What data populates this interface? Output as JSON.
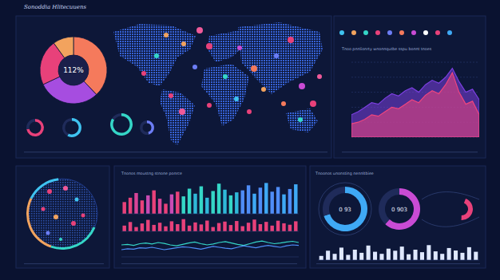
{
  "dashboard": {
    "title": "Sonoddia Hlitecuuens",
    "captions": [
      "Tnoo pnnlionrty wnonnqutbe sspu bonnt tnoes",
      "Tnonos moustng stnone ponrce",
      "Tnoonos unonsting nennltbiee"
    ]
  },
  "chart_data": [
    {
      "type": "pie",
      "center_label": "112%",
      "values": [
        38,
        30,
        22,
        10
      ],
      "colors": [
        "#f57a5c",
        "#a64de0",
        "#e8417a",
        "#f2a35e"
      ]
    },
    {
      "type": "donut",
      "series": [
        {
          "color": "#e8417a",
          "values": [
            72,
            28
          ]
        },
        {
          "color": "#3fc3f0",
          "values": [
            58,
            42
          ]
        },
        {
          "color": "#35d6c7",
          "values": [
            84,
            16
          ]
        },
        {
          "color": "#6c7df5",
          "values": [
            46,
            54
          ]
        }
      ]
    },
    {
      "type": "area",
      "x": [
        0,
        1,
        2,
        3,
        4,
        5,
        6,
        7,
        8,
        9,
        10,
        11,
        12,
        13,
        14,
        15,
        16,
        17,
        18,
        19
      ],
      "xlim": [
        0,
        19
      ],
      "ylim": [
        0,
        100
      ],
      "yticks": [
        0,
        20,
        40,
        60,
        80,
        100
      ],
      "grid": true,
      "tick_labels": false,
      "series": [
        {
          "color": "#7b3fe0",
          "values": [
            30,
            34,
            40,
            46,
            44,
            52,
            58,
            55,
            62,
            66,
            60,
            70,
            76,
            72,
            80,
            92,
            74,
            60,
            64,
            50
          ]
        },
        {
          "color": "#f0457e",
          "values": [
            18,
            20,
            24,
            30,
            28,
            34,
            40,
            38,
            44,
            50,
            46,
            56,
            62,
            58,
            70,
            86,
            60,
            44,
            48,
            30
          ]
        }
      ]
    },
    {
      "type": "bar",
      "tick_labels": false,
      "ylim": [
        0,
        100
      ],
      "categories": [
        null,
        null,
        null,
        null,
        null,
        null,
        null,
        null,
        null,
        null,
        null,
        null,
        null,
        null,
        null,
        null,
        null,
        null,
        null,
        null,
        null,
        null,
        null,
        null,
        null,
        null,
        null,
        null,
        null,
        null
      ],
      "values": [
        35,
        48,
        62,
        40,
        55,
        70,
        45,
        30,
        58,
        66,
        52,
        75,
        60,
        82,
        48,
        68,
        90,
        72,
        55,
        64,
        70,
        85,
        60,
        78,
        92,
        66,
        80,
        58,
        74,
        88
      ],
      "colors": [
        "#e8417a",
        "#e8417a",
        "#d94497",
        "#e8417a",
        "#c94bb4",
        "#e8417a",
        "#d94497",
        "#e8417a",
        "#c94bb4",
        "#e8417a",
        "#35d6c7",
        "#35d6c7",
        "#2fb8d8",
        "#35d6c7",
        "#2fb8d8",
        "#35d6c7",
        "#35d6c7",
        "#2fb8d8",
        "#35d6c7",
        "#2fb8d8",
        "#4f8df7",
        "#4f8df7",
        "#3fa9f5",
        "#4f8df7",
        "#3fa9f5",
        "#4f8df7",
        "#4f8df7",
        "#3fa9f5",
        "#4f8df7",
        "#3fa9f5"
      ]
    },
    {
      "type": "bar",
      "tick_labels": false,
      "ylim": [
        0,
        100
      ],
      "color": "#e8417a",
      "categories": [
        null,
        null,
        null,
        null,
        null,
        null,
        null,
        null,
        null,
        null,
        null,
        null,
        null,
        null,
        null,
        null,
        null,
        null,
        null,
        null,
        null,
        null,
        null,
        null,
        null,
        null,
        null,
        null,
        null,
        null
      ],
      "values": [
        40,
        65,
        30,
        55,
        80,
        45,
        60,
        35,
        70,
        50,
        85,
        40,
        62,
        48,
        75,
        30,
        58,
        68,
        44,
        72,
        36,
        60,
        82,
        50,
        66,
        40,
        74,
        56,
        46,
        70
      ]
    },
    {
      "type": "line",
      "tick_labels": false,
      "x": [
        0,
        1,
        2,
        3,
        4,
        5,
        6,
        7,
        8,
        9,
        10,
        11,
        12,
        13,
        14,
        15,
        16,
        17,
        18,
        19,
        20,
        21,
        22,
        23,
        24,
        25,
        26,
        27,
        28,
        29
      ],
      "xlim": [
        0,
        29
      ],
      "ylim": [
        0,
        100
      ],
      "series": [
        {
          "color": "#35d6c7",
          "values": [
            50,
            52,
            48,
            55,
            58,
            54,
            60,
            56,
            50,
            46,
            52,
            58,
            62,
            55,
            50,
            54,
            60,
            64,
            58,
            52,
            48,
            55,
            62,
            66,
            60,
            55,
            58,
            62,
            65,
            60
          ]
        },
        {
          "color": "#4f8df7",
          "values": [
            30,
            34,
            32,
            38,
            36,
            40,
            35,
            30,
            34,
            38,
            42,
            40,
            36,
            32,
            38,
            44,
            40,
            36,
            34,
            40,
            46,
            42,
            38,
            44,
            48,
            44,
            40,
            46,
            50,
            48
          ]
        }
      ]
    },
    {
      "type": "donut",
      "series": [
        {
          "color": "#3fa9f5",
          "center_label": "0 93",
          "values": [
            70,
            30
          ]
        },
        {
          "color": "#c94bd4",
          "center_label": "0 903",
          "values": [
            62,
            38
          ]
        }
      ]
    },
    {
      "type": "bar",
      "tick_labels": false,
      "ylim": [
        0,
        100
      ],
      "color": "#dfe8ff",
      "categories": [
        null,
        null,
        null,
        null,
        null,
        null,
        null,
        null,
        null,
        null,
        null,
        null,
        null,
        null,
        null,
        null,
        null,
        null,
        null,
        null,
        null,
        null,
        null,
        null
      ],
      "values": [
        20,
        45,
        30,
        60,
        25,
        50,
        35,
        70,
        40,
        30,
        55,
        45,
        65,
        28,
        50,
        38,
        72,
        42,
        30,
        58,
        46,
        35,
        62,
        40
      ]
    }
  ]
}
